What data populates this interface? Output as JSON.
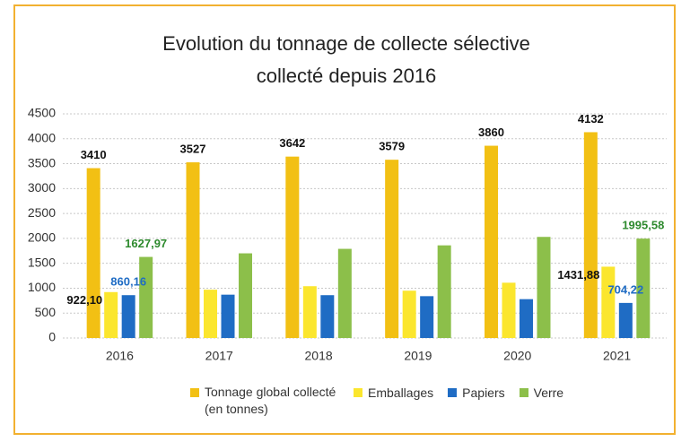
{
  "chart_data": {
    "type": "bar",
    "title": "Evolution du tonnage de collecte sélective",
    "subtitle": "collecté depuis 2016",
    "categories": [
      "2016",
      "2017",
      "2018",
      "2019",
      "2020",
      "2021"
    ],
    "series": [
      {
        "name": "Tonnage global collecté (en tonnes)",
        "color": "#f2c014",
        "label_color": "#111111",
        "values": [
          3410,
          3527,
          3642,
          3579,
          3860,
          4132
        ]
      },
      {
        "name": "Emballages",
        "color": "#fbe62e",
        "label_color": "#111111",
        "values": [
          922.1,
          970,
          1040,
          950,
          1110,
          1431.88
        ],
        "value_labels": [
          "922,10",
          null,
          null,
          null,
          null,
          "1431,88"
        ]
      },
      {
        "name": "Papiers",
        "color": "#1f6cc4",
        "label_color": "#1f6cc4",
        "values": [
          860.16,
          870,
          860,
          840,
          780,
          704.22
        ],
        "value_labels": [
          "860,16",
          null,
          null,
          null,
          null,
          "704,22"
        ]
      },
      {
        "name": "Verre",
        "color": "#8cbf4a",
        "label_color": "#2e8a2e",
        "values": [
          1627.97,
          1700,
          1790,
          1860,
          2030,
          1995.58
        ],
        "value_labels": [
          "1627,97",
          null,
          null,
          null,
          null,
          "1995,58"
        ]
      }
    ],
    "ylim": [
      0,
      4500
    ],
    "yticks": [
      0,
      500,
      1000,
      1500,
      2000,
      2500,
      3000,
      3500,
      4000,
      4500
    ],
    "grid": true,
    "legend": "bottom"
  }
}
